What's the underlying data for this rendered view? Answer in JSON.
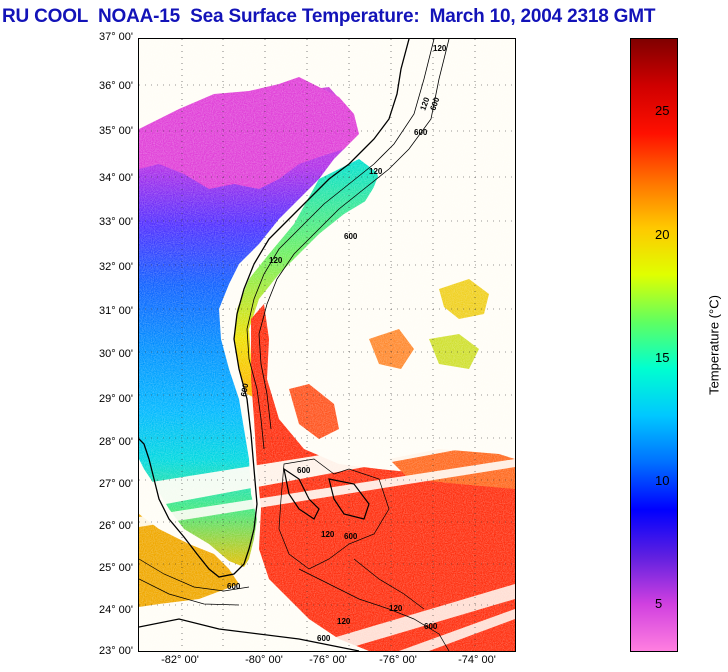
{
  "title": "RU COOL  NOAA-15  Sea Surface Temperature:  March 10, 2004 2318 GMT",
  "map": {
    "lat_labels": [
      "37° 00'",
      "36° 00'",
      "35° 00'",
      "34° 00'",
      "33° 00'",
      "32° 00'",
      "31° 00'",
      "30° 00'",
      "29° 00'",
      "28° 00'",
      "27° 00'",
      "26° 00'",
      "25° 00'",
      "24° 00'",
      "23° 00'"
    ],
    "lon_labels": [
      "-82° 00'",
      "-80° 00'",
      "-76° 00'",
      "-76° 00'",
      "-74° 00'"
    ],
    "depth_labels": [
      "120",
      "600",
      "120",
      "600",
      "120",
      "600",
      "120",
      "600",
      "600",
      "120",
      "600",
      "600",
      "120",
      "120",
      "600",
      "600"
    ]
  },
  "colorbar": {
    "label": "Temperature (°C)",
    "ticks": [
      "25",
      "20",
      "15",
      "10",
      "5"
    ],
    "tick_values": [
      25,
      20,
      15,
      10,
      5
    ],
    "range": [
      3,
      28
    ],
    "colors": [
      "#ff7fe0",
      "#d040e0",
      "#6020e0",
      "#0000ff",
      "#0070ff",
      "#00c8ff",
      "#00ffd0",
      "#60ff60",
      "#e0ff00",
      "#ffc800",
      "#ff7000",
      "#ff1000",
      "#d00000",
      "#800000"
    ]
  }
}
